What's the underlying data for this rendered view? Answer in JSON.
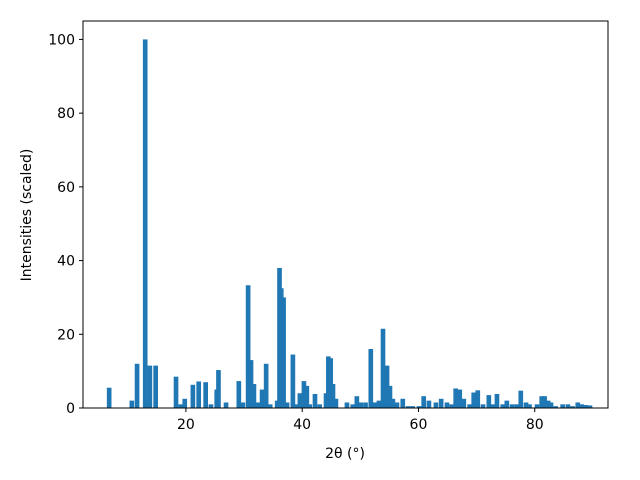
{
  "chart_data": {
    "type": "bar",
    "xlabel": "2θ (°)",
    "ylabel": "Intensities (scaled)",
    "color": "#1f77b4",
    "x": [
      6.8,
      10.7,
      11.6,
      13.0,
      13.8,
      14.8,
      18.3,
      19.1,
      19.8,
      21.2,
      22.2,
      23.4,
      24.3,
      25.3,
      25.6,
      26.9,
      29.1,
      29.8,
      30.7,
      31.2,
      31.7,
      32.4,
      33.1,
      33.8,
      34.5,
      35.7,
      36.1,
      36.4,
      36.8,
      37.4,
      38.4,
      38.9,
      39.6,
      40.3,
      40.8,
      41.3,
      42.2,
      43.0,
      44.1,
      44.5,
      44.9,
      45.3,
      45.8,
      47.7,
      48.7,
      49.4,
      50.1,
      50.9,
      51.8,
      52.5,
      53.2,
      53.9,
      54.6,
      55.1,
      55.6,
      56.3,
      57.3,
      58.2,
      59.0,
      60.1,
      60.9,
      61.8,
      63.0,
      63.9,
      64.9,
      65.7,
      66.4,
      67.1,
      67.8,
      68.8,
      69.5,
      70.2,
      71.1,
      72.1,
      72.8,
      73.5,
      74.5,
      75.2,
      76.1,
      76.9,
      77.6,
      78.5,
      79.1,
      80.4,
      81.2,
      81.7,
      82.3,
      82.8,
      83.6,
      84.8,
      85.7,
      86.5,
      87.4,
      88.1,
      88.8,
      89.5
    ],
    "values": [
      5.5,
      2,
      12,
      100,
      11.5,
      11.5,
      8.5,
      1,
      2.5,
      6.3,
      7.2,
      7,
      1,
      5,
      10.3,
      1.5,
      7.3,
      1.5,
      33.3,
      13,
      6.5,
      1.5,
      5,
      12,
      1,
      2,
      38,
      32.5,
      30,
      1.5,
      14.5,
      1,
      4,
      7.3,
      6,
      1,
      3.8,
      1,
      4,
      14,
      13.5,
      6.5,
      2.5,
      1.5,
      1,
      3.2,
      1.5,
      1.5,
      16,
      1.5,
      2,
      21.5,
      11.5,
      6,
      2.5,
      1.5,
      2.5,
      0.5,
      0.5,
      0.5,
      3.2,
      2,
      1.5,
      2.5,
      1.5,
      1,
      5.3,
      5,
      2.5,
      1,
      4.2,
      4.8,
      1,
      3.5,
      1,
      3.8,
      1,
      2,
      1,
      1,
      4.7,
      1.5,
      1,
      1,
      3.2,
      3.2,
      2,
      1.5,
      0.5,
      1,
      1,
      0.5,
      1.5,
      1,
      0.8,
      0.7
    ],
    "xlim": [
      2.3,
      92.6
    ],
    "xticks": [
      20,
      40,
      60,
      80
    ],
    "ylim": [
      0,
      105
    ],
    "yticks": [
      0,
      20,
      40,
      60,
      80,
      100
    ]
  }
}
